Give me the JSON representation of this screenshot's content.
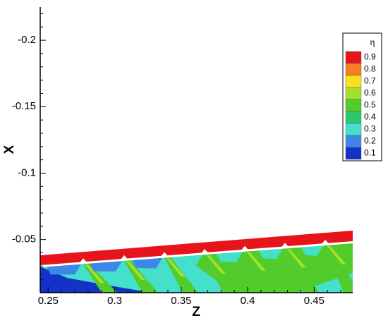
{
  "chart_data": {
    "type": "contour",
    "xlabel": "Z",
    "ylabel": "X",
    "xlim": [
      0.244,
      0.479
    ],
    "ylim": [
      -0.01,
      -0.225
    ],
    "xticks": [
      0.25,
      0.3,
      0.35,
      0.4,
      0.45
    ],
    "yticks": [
      -0.2,
      -0.15,
      -0.1,
      -0.05
    ],
    "legend": {
      "title": "η",
      "position": "upper right",
      "levels": [
        0.9,
        0.8,
        0.7,
        0.6,
        0.5,
        0.4,
        0.3,
        0.2,
        0.1
      ],
      "colors": [
        "#e8141c",
        "#f57f20",
        "#f7e31c",
        "#a6e02e",
        "#52cc2a",
        "#2cc86e",
        "#44e0cc",
        "#3b88e6",
        "#1432c8"
      ]
    }
  }
}
